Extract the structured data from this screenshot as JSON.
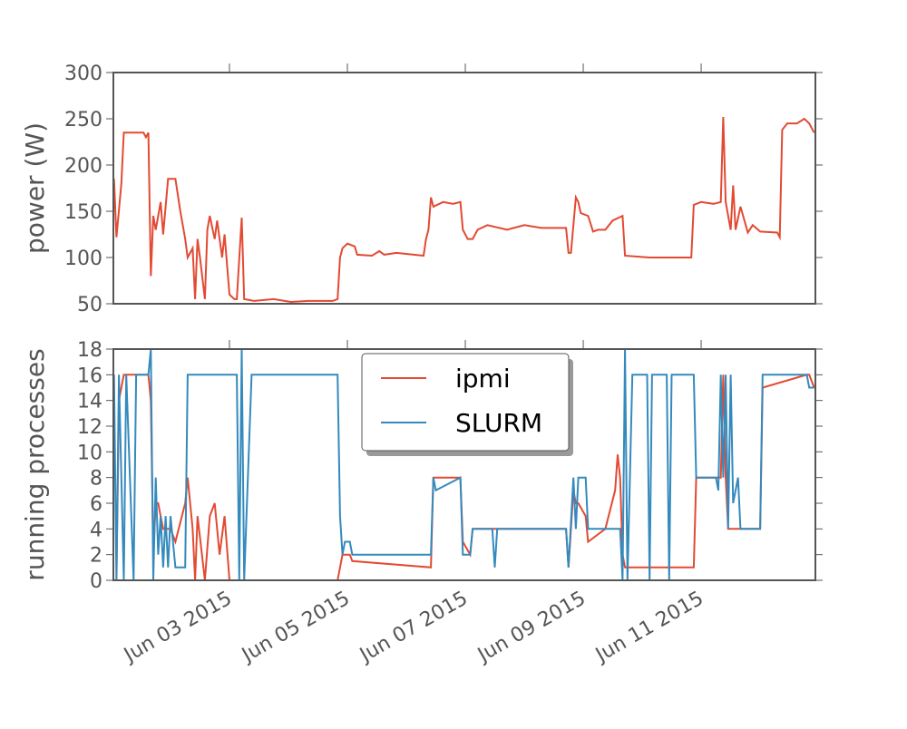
{
  "chart_data": [
    {
      "type": "line",
      "ylabel": "power (W)",
      "color": "#E24A33",
      "xlim": [
        "2015-06-01T00:45",
        "2015-06-12T22:30"
      ],
      "ylim": [
        50,
        300
      ],
      "yticks": [
        50,
        100,
        150,
        200,
        250,
        300
      ],
      "x": [
        "2015-06-01T01:00",
        "2015-06-01T02:00",
        "2015-06-01T04:00",
        "2015-06-01T05:00",
        "2015-06-01T13:00",
        "2015-06-01T14:00",
        "2015-06-01T15:00",
        "2015-06-01T16:00",
        "2015-06-01T17:00",
        "2015-06-01T18:00",
        "2015-06-01T20:00",
        "2015-06-01T21:00",
        "2015-06-01T23:00",
        "2015-06-02T02:00",
        "2015-06-02T04:00",
        "2015-06-02T06:00",
        "2015-06-02T07:00",
        "2015-06-02T09:00",
        "2015-06-02T10:00",
        "2015-06-02T11:00",
        "2015-06-02T12:00",
        "2015-06-02T14:00",
        "2015-06-02T15:00",
        "2015-06-02T16:00",
        "2015-06-02T18:00",
        "2015-06-02T19:00",
        "2015-06-02T21:00",
        "2015-06-02T22:00",
        "2015-06-03T00:00",
        "2015-06-03T02:00",
        "2015-06-03T03:00",
        "2015-06-03T05:00",
        "2015-06-03T06:00",
        "2015-06-03T10:00",
        "2015-06-03T18:00",
        "2015-06-04T01:00",
        "2015-06-04T08:00",
        "2015-06-04T18:00",
        "2015-06-04T20:00",
        "2015-06-04T21:00",
        "2015-06-04T22:00",
        "2015-06-05T00:00",
        "2015-06-05T03:00",
        "2015-06-05T04:00",
        "2015-06-05T10:00",
        "2015-06-05T13:00",
        "2015-06-05T15:00",
        "2015-06-05T20:00",
        "2015-06-06T07:00",
        "2015-06-06T08:00",
        "2015-06-06T09:00",
        "2015-06-06T10:00",
        "2015-06-06T11:00",
        "2015-06-06T15:00",
        "2015-06-06T19:00",
        "2015-06-06T22:00",
        "2015-06-06T23:00",
        "2015-06-07T01:00",
        "2015-06-07T03:00",
        "2015-06-07T05:00",
        "2015-06-07T09:00",
        "2015-06-07T17:00",
        "2015-06-08T00:00",
        "2015-06-08T07:00",
        "2015-06-08T17:00",
        "2015-06-08T18:00",
        "2015-06-08T19:00",
        "2015-06-08T21:00",
        "2015-06-08T22:00",
        "2015-06-08T23:00",
        "2015-06-09T02:00",
        "2015-06-09T04:00",
        "2015-06-09T06:00",
        "2015-06-09T09:00",
        "2015-06-09T12:00",
        "2015-06-09T16:00",
        "2015-06-09T17:00",
        "2015-06-10T03:00",
        "2015-06-10T10:00",
        "2015-06-10T18:00",
        "2015-06-10T20:00",
        "2015-06-10T21:00",
        "2015-06-11T00:00",
        "2015-06-11T05:00",
        "2015-06-11T08:00",
        "2015-06-11T09:00",
        "2015-06-11T10:00",
        "2015-06-11T12:00",
        "2015-06-11T13:00",
        "2015-06-11T14:00",
        "2015-06-11T16:00",
        "2015-06-11T19:00",
        "2015-06-11T21:00",
        "2015-06-12T00:00",
        "2015-06-12T07:00",
        "2015-06-12T08:00",
        "2015-06-12T09:00",
        "2015-06-12T11:00",
        "2015-06-12T15:00",
        "2015-06-12T18:00",
        "2015-06-12T20:00",
        "2015-06-12T22:00"
      ],
      "values": [
        185,
        122,
        180,
        235,
        235,
        230,
        235,
        80,
        145,
        130,
        160,
        125,
        185,
        185,
        150,
        120,
        100,
        110,
        55,
        120,
        100,
        55,
        130,
        145,
        120,
        140,
        100,
        125,
        60,
        55,
        55,
        143,
        55,
        53,
        55,
        52,
        53,
        53,
        55,
        100,
        110,
        115,
        112,
        103,
        102,
        107,
        103,
        105,
        102,
        120,
        130,
        165,
        155,
        160,
        158,
        160,
        130,
        120,
        120,
        130,
        135,
        130,
        135,
        132,
        132,
        105,
        105,
        165,
        160,
        148,
        145,
        128,
        130,
        130,
        140,
        145,
        102,
        100,
        100,
        100,
        100,
        157,
        160,
        158,
        160,
        252,
        160,
        130,
        178,
        130,
        155,
        127,
        135,
        128,
        127,
        122,
        238,
        245,
        245,
        250,
        245,
        235
      ]
    },
    {
      "type": "line",
      "ylabel": "running processes",
      "legend": "upper center",
      "xlim": [
        "2015-06-01T00:45",
        "2015-06-12T22:30"
      ],
      "ylim": [
        0,
        18
      ],
      "yticks": [
        0,
        2,
        4,
        6,
        8,
        10,
        12,
        14,
        16,
        18
      ],
      "xticks": [
        {
          "value": "2015-06-03T00:00",
          "label": "Jun 03 2015"
        },
        {
          "value": "2015-06-05T00:00",
          "label": "Jun 05 2015"
        },
        {
          "value": "2015-06-07T00:00",
          "label": "Jun 07 2015"
        },
        {
          "value": "2015-06-09T00:00",
          "label": "Jun 09 2015"
        },
        {
          "value": "2015-06-11T00:00",
          "label": "Jun 11 2015"
        }
      ],
      "x": [
        "2015-06-01T01:00",
        "2015-06-01T02:00",
        "2015-06-01T03:00",
        "2015-06-01T05:00",
        "2015-06-01T06:00",
        "2015-06-01T09:00",
        "2015-06-01T10:00",
        "2015-06-01T15:00",
        "2015-06-01T16:00",
        "2015-06-01T17:00",
        "2015-06-01T18:00",
        "2015-06-01T19:00",
        "2015-06-01T20:00",
        "2015-06-01T21:00",
        "2015-06-01T22:00",
        "2015-06-01T23:00",
        "2015-06-02T00:00",
        "2015-06-02T02:00",
        "2015-06-02T06:00",
        "2015-06-02T07:00",
        "2015-06-02T09:00",
        "2015-06-02T10:00",
        "2015-06-02T11:00",
        "2015-06-02T14:00",
        "2015-06-02T16:00",
        "2015-06-02T18:00",
        "2015-06-02T20:00",
        "2015-06-02T22:00",
        "2015-06-03T00:00",
        "2015-06-03T03:00",
        "2015-06-03T04:00",
        "2015-06-03T05:00",
        "2015-06-03T06:00",
        "2015-06-03T09:00",
        "2015-06-04T20:00",
        "2015-06-04T21:00",
        "2015-06-04T22:00",
        "2015-06-04T23:00",
        "2015-06-05T01:00",
        "2015-06-05T02:00",
        "2015-06-06T10:00",
        "2015-06-06T11:00",
        "2015-06-06T12:00",
        "2015-06-06T22:00",
        "2015-06-06T23:00",
        "2015-06-07T02:00",
        "2015-06-07T03:00",
        "2015-06-07T11:00",
        "2015-06-07T12:00",
        "2015-06-07T13:00",
        "2015-06-08T17:00",
        "2015-06-08T18:00",
        "2015-06-08T20:00",
        "2015-06-08T21:00",
        "2015-06-08T22:00",
        "2015-06-09T01:00",
        "2015-06-09T02:00",
        "2015-06-09T09:00",
        "2015-06-09T13:00",
        "2015-06-09T14:00",
        "2015-06-09T15:00",
        "2015-06-09T16:00",
        "2015-06-09T17:00",
        "2015-06-09T18:00",
        "2015-06-09T20:00",
        "2015-06-10T02:00",
        "2015-06-10T03:00",
        "2015-06-10T04:00",
        "2015-06-10T10:00",
        "2015-06-10T11:00",
        "2015-06-10T12:00",
        "2015-06-10T21:00",
        "2015-06-10T22:00",
        "2015-06-11T06:00",
        "2015-06-11T07:00",
        "2015-06-11T08:00",
        "2015-06-11T09:00",
        "2015-06-11T10:00",
        "2015-06-11T11:00",
        "2015-06-11T12:00",
        "2015-06-11T13:00",
        "2015-06-11T15:00",
        "2015-06-11T16:00",
        "2015-06-12T00:00",
        "2015-06-12T01:00",
        "2015-06-12T19:00",
        "2015-06-12T20:00",
        "2015-06-12T22:00"
      ],
      "series": [
        {
          "name": "ipmi",
          "color": "#E24A33",
          "values": [
            0,
            0,
            14,
            16,
            16,
            16,
            16,
            16,
            14,
            2,
            6,
            6,
            5,
            4,
            4,
            4,
            4,
            3,
            6,
            8,
            4,
            0,
            5,
            0,
            5,
            6,
            2,
            5,
            0,
            0,
            0,
            0,
            0,
            0,
            0,
            1,
            2,
            2,
            2,
            1.5,
            1,
            8,
            8,
            8,
            3,
            2,
            4,
            4,
            4,
            4,
            4,
            1,
            7,
            6,
            6,
            5,
            3,
            4,
            7,
            9.8,
            8,
            2,
            1,
            1,
            1,
            1,
            1,
            1,
            1,
            1,
            1,
            1,
            8,
            8,
            8,
            8,
            16,
            8,
            4,
            4,
            4,
            4,
            4,
            4,
            15,
            16,
            16,
            15
          ]
        },
        {
          "name": "SLURM",
          "color": "#348ABD",
          "values": [
            16,
            0,
            16,
            0,
            16,
            0,
            16,
            16,
            18,
            0,
            8,
            2,
            5,
            1,
            5,
            1,
            5,
            1,
            1,
            16,
            16,
            16,
            16,
            16,
            16,
            16,
            16,
            16,
            16,
            16,
            0,
            18,
            0,
            16,
            16,
            5,
            2,
            3,
            3,
            2,
            2,
            8,
            7,
            8,
            2,
            2,
            4,
            4,
            1,
            4,
            4,
            1,
            8,
            4,
            8,
            8,
            4,
            4,
            4,
            4,
            4,
            0,
            18,
            0,
            16,
            16,
            0,
            16,
            16,
            0,
            16,
            16,
            8,
            8,
            7,
            16,
            8,
            16,
            4,
            16,
            6,
            8,
            4,
            4,
            16,
            16,
            15,
            15
          ]
        }
      ]
    }
  ]
}
